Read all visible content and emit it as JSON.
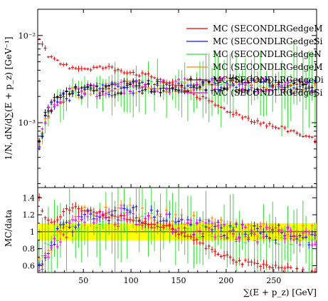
{
  "chart_data": {
    "type": "scatter",
    "title": "",
    "xlabel": "∑(E + p_z) [GeV]",
    "ylabel_main": "1/N, dN/d∑(E + p_z) [GeV⁻¹]",
    "ylabel_ratio": "MC/data",
    "xlim": [
      2,
      295
    ],
    "x_ticks": [
      50,
      100,
      150,
      200,
      250
    ],
    "x_tick_labels": [
      "50",
      "100",
      "150",
      "200",
      "250"
    ],
    "main_yscale": "log",
    "main_ylim": [
      0.00018,
      0.02
    ],
    "main_y_tick_labels": [
      {
        "value": 0.01,
        "label": "10⁻²"
      },
      {
        "value": 0.001,
        "label": "10⁻³"
      }
    ],
    "ratio_ylim": [
      0.52,
      1.52
    ],
    "ratio_y_ticks": [
      0.6,
      0.8,
      1,
      1.2,
      1.4
    ],
    "ratio_y_tick_labels": [
      "0.6",
      "0.8",
      "1",
      "1.2",
      "1.4"
    ],
    "ratio_band": {
      "low": 0.9,
      "high": 1.1,
      "color": "#ffff00",
      "line": 1.0
    },
    "legend_position": "top-right",
    "colors": {
      "data": "#000000",
      "MC1": "#ee0000",
      "MC2": "#1111ff",
      "MC3": "#33dd33",
      "MC4": "#ff8800",
      "MC5": "#6a2a00",
      "MC6": "#ee00ee"
    },
    "series": [
      {
        "key": "MC1",
        "name": "MC (SECONDLRGedgeM",
        "color": "#ee0000",
        "x": [
          3,
          8,
          15,
          30,
          50,
          75,
          100,
          125,
          150,
          175,
          200,
          225,
          250,
          270,
          290
        ],
        "y": [
          0.01,
          0.0075,
          0.0055,
          0.0045,
          0.0042,
          0.0043,
          0.0038,
          0.0033,
          0.0026,
          0.0019,
          0.0014,
          0.0011,
          0.0009,
          0.0008,
          0.00065
        ]
      },
      {
        "key": "MC2",
        "name": "MC (SECONDLRGedgeSi",
        "color": "#1111ff",
        "x": [
          3,
          10,
          20,
          30,
          50,
          100,
          150,
          200,
          250,
          290
        ],
        "y": [
          0.0005,
          0.0012,
          0.0018,
          0.0021,
          0.0023,
          0.0026,
          0.0027,
          0.0028,
          0.0027,
          0.0026
        ]
      },
      {
        "key": "MC3",
        "name": "MC (SECONDLRGedgeN",
        "color": "#33dd33",
        "x": [
          3,
          10,
          20,
          30,
          50,
          100,
          150,
          200,
          250,
          290
        ],
        "y": [
          0.0005,
          0.0012,
          0.0018,
          0.0021,
          0.0023,
          0.0026,
          0.0027,
          0.0028,
          0.0027,
          0.0026
        ]
      },
      {
        "key": "MC4",
        "name": "MC (SECONDLRGedgeM",
        "color": "#ff8800",
        "x": [
          3,
          10,
          20,
          30,
          50,
          100,
          150,
          200,
          250,
          290
        ],
        "y": [
          0.0005,
          0.0012,
          0.0018,
          0.0021,
          0.0023,
          0.0026,
          0.0027,
          0.0028,
          0.0027,
          0.0026
        ]
      },
      {
        "key": "MC5",
        "name": "MC (SECONDLRGedgeDi",
        "color": "#6a2a00",
        "x": [
          3,
          10,
          20,
          30,
          50,
          100,
          150,
          200,
          250,
          290
        ],
        "y": [
          0.0005,
          0.0012,
          0.0018,
          0.0021,
          0.0023,
          0.0026,
          0.0027,
          0.0028,
          0.0027,
          0.0026
        ]
      },
      {
        "key": "MC6",
        "name": "MC (SECONDLRGedgeSi",
        "color": "#ee00ee",
        "x": [
          3,
          10,
          20,
          30,
          50,
          100,
          150,
          200,
          250,
          290
        ],
        "y": [
          0.0005,
          0.0012,
          0.0018,
          0.0021,
          0.0023,
          0.0026,
          0.0027,
          0.0028,
          0.0027,
          0.0026
        ]
      }
    ],
    "data_series": {
      "key": "data",
      "color": "#000000",
      "x": [
        3,
        10,
        20,
        30,
        50,
        100,
        150,
        200,
        250,
        290
      ],
      "y": [
        0.0005,
        0.0012,
        0.0018,
        0.0021,
        0.0023,
        0.0026,
        0.0027,
        0.0028,
        0.0027,
        0.0026
      ]
    },
    "ratio_series": [
      {
        "key": "MC1",
        "x": [
          3,
          6,
          10,
          15,
          20,
          30,
          40,
          50,
          75,
          100,
          125,
          140,
          150,
          175,
          190,
          200,
          225,
          250,
          270,
          290
        ],
        "y": [
          1.45,
          1.3,
          1.15,
          1.1,
          1.1,
          1.25,
          1.3,
          1.25,
          1.2,
          1.15,
          1.1,
          1.05,
          1.0,
          0.85,
          0.75,
          0.7,
          0.62,
          0.58,
          0.55,
          0.53
        ]
      },
      {
        "key": "MC2",
        "x": [
          3,
          6,
          10,
          15,
          20,
          30,
          50,
          100,
          150,
          200,
          250,
          290
        ],
        "y": [
          0.6,
          0.62,
          0.65,
          0.75,
          0.9,
          1.05,
          1.15,
          1.2,
          1.1,
          1.0,
          1.0,
          0.95
        ]
      },
      {
        "key": "MC4",
        "x": [
          3,
          6,
          10,
          15,
          20,
          30,
          50,
          100,
          150,
          200,
          250,
          290
        ],
        "y": [
          0.62,
          0.64,
          0.68,
          0.78,
          0.92,
          1.08,
          1.18,
          1.22,
          1.12,
          1.02,
          1.0,
          0.97
        ]
      },
      {
        "key": "MC6",
        "x": [
          3,
          6,
          10,
          15,
          20,
          30,
          50,
          100,
          150,
          200,
          250,
          290
        ],
        "y": [
          0.58,
          0.6,
          0.63,
          0.72,
          0.88,
          1.02,
          1.12,
          1.18,
          1.08,
          0.98,
          0.97,
          0.92
        ]
      },
      {
        "key": "MC3",
        "x": [
          3,
          10,
          20,
          30,
          50,
          100,
          150,
          200,
          250,
          290
        ],
        "y": [
          0.7,
          0.8,
          0.95,
          1.05,
          1.1,
          1.15,
          1.05,
          1.0,
          0.95,
          0.95
        ]
      }
    ]
  }
}
